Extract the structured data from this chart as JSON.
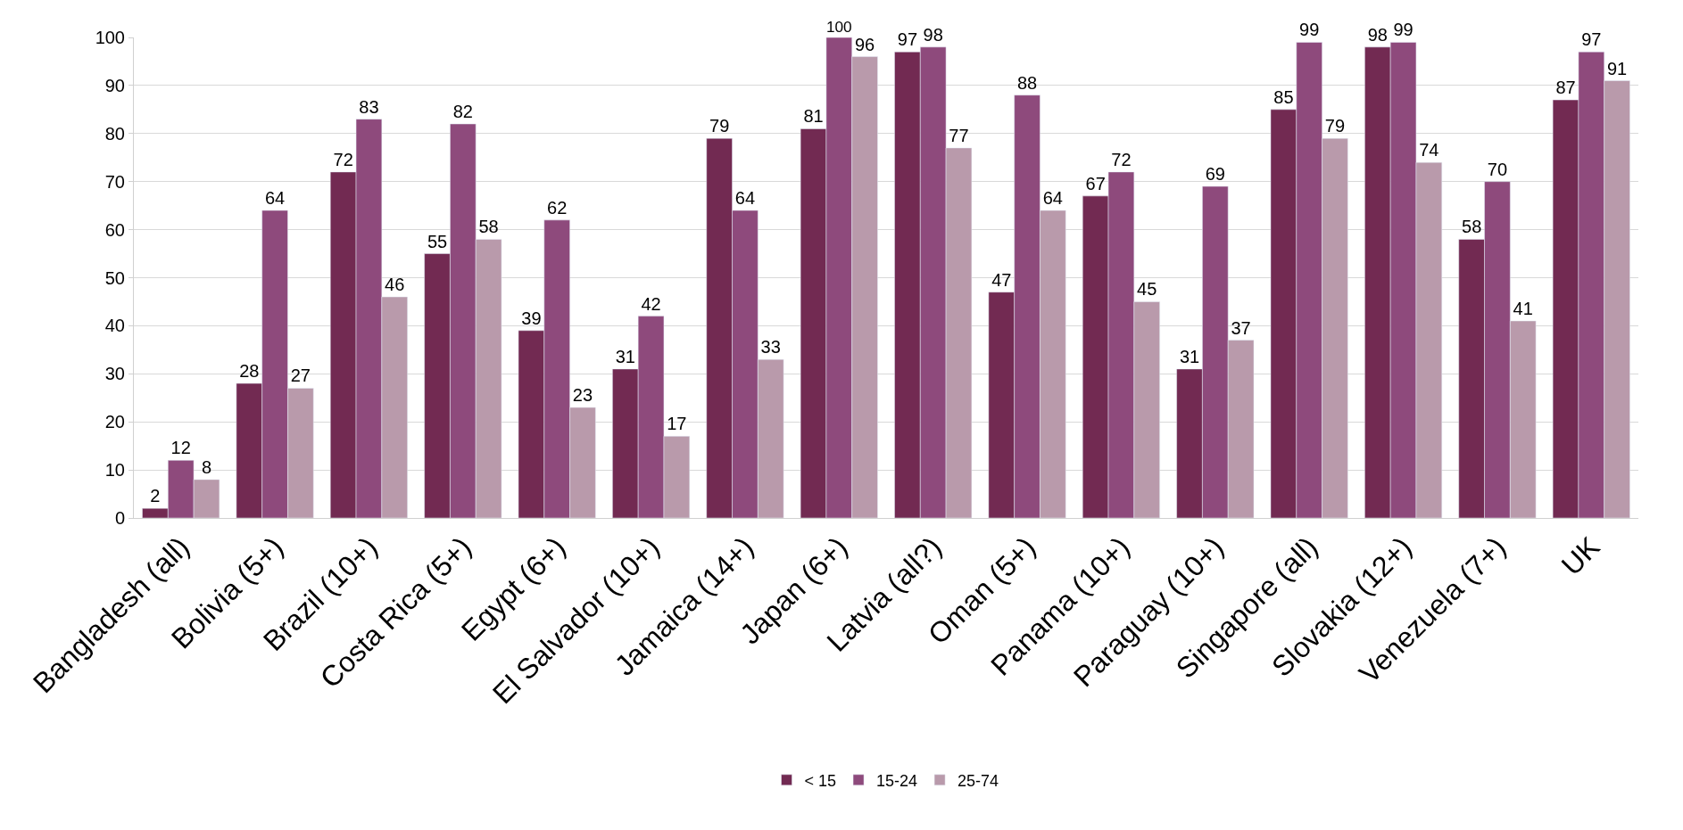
{
  "chart_data": {
    "type": "bar",
    "categories": [
      "Bangladesh (all)",
      "Bolivia (5+)",
      "Brazil (10+)",
      "Costa Rica (5+)",
      "Egypt (6+)",
      "El Salvador (10+)",
      "Jamaica (14+)",
      "Japan (6+)",
      "Latvia (all?)",
      "Oman (5+)",
      "Panama (10+)",
      "Paraguay (10+)",
      "Singapore (all)",
      "Slovakia (12+)",
      "Venezuela (7+)",
      "UK"
    ],
    "series": [
      {
        "name": "< 15",
        "color": "#722a52",
        "values": [
          2,
          28,
          72,
          55,
          39,
          31,
          79,
          81,
          97,
          47,
          67,
          31,
          85,
          98,
          58,
          87
        ]
      },
      {
        "name": "15-24",
        "color": "#8e4a7c",
        "values": [
          12,
          64,
          83,
          82,
          62,
          42,
          64,
          100,
          98,
          88,
          72,
          69,
          99,
          99,
          70,
          97
        ]
      },
      {
        "name": "25-74",
        "color": "#b99aab",
        "values": [
          8,
          27,
          46,
          58,
          23,
          17,
          33,
          96,
          77,
          64,
          45,
          37,
          79,
          74,
          41,
          91
        ]
      }
    ],
    "ylim": [
      0,
      100
    ],
    "yticks": [
      0,
      10,
      20,
      30,
      40,
      50,
      60,
      70,
      80,
      90,
      100
    ],
    "grid": "y",
    "legend": "bottom",
    "data_labels": true
  }
}
